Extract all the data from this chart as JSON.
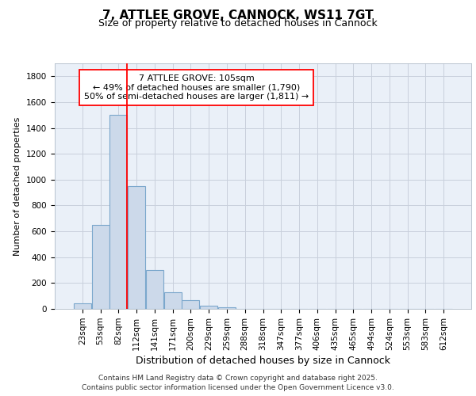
{
  "title_line1": "7, ATTLEE GROVE, CANNOCK, WS11 7GT",
  "title_line2": "Size of property relative to detached houses in Cannock",
  "xlabel": "Distribution of detached houses by size in Cannock",
  "ylabel": "Number of detached properties",
  "footer_line1": "Contains HM Land Registry data © Crown copyright and database right 2025.",
  "footer_line2": "Contains public sector information licensed under the Open Government Licence v3.0.",
  "annotation_title": "7 ATTLEE GROVE: 105sqm",
  "annotation_line1": "← 49% of detached houses are smaller (1,790)",
  "annotation_line2": "50% of semi-detached houses are larger (1,811) →",
  "bar_labels": [
    "23sqm",
    "53sqm",
    "82sqm",
    "112sqm",
    "141sqm",
    "171sqm",
    "200sqm",
    "229sqm",
    "259sqm",
    "288sqm",
    "318sqm",
    "347sqm",
    "377sqm",
    "406sqm",
    "435sqm",
    "465sqm",
    "494sqm",
    "524sqm",
    "553sqm",
    "583sqm",
    "612sqm"
  ],
  "bar_values": [
    40,
    650,
    1500,
    950,
    300,
    130,
    65,
    25,
    10,
    0,
    0,
    0,
    0,
    0,
    0,
    0,
    0,
    0,
    0,
    0,
    0
  ],
  "bar_color": "#ccd9ea",
  "bar_edge_color": "#7ba7cc",
  "red_line_index": 2,
  "ylim": [
    0,
    1900
  ],
  "yticks": [
    0,
    200,
    400,
    600,
    800,
    1000,
    1200,
    1400,
    1600,
    1800
  ],
  "background_color": "#eaf0f8",
  "grid_color": "#c8d0dc",
  "title_fontsize": 11,
  "subtitle_fontsize": 9,
  "ylabel_fontsize": 8,
  "xlabel_fontsize": 9,
  "tick_fontsize": 7.5,
  "footer_fontsize": 6.5,
  "annot_fontsize": 8
}
